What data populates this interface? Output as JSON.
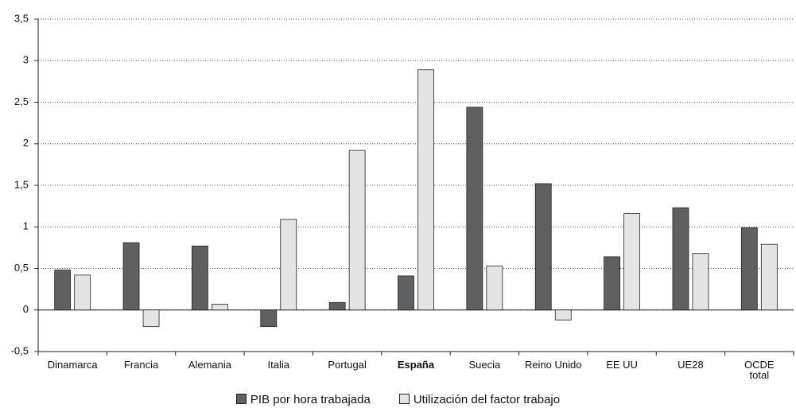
{
  "chart_data": {
    "type": "bar",
    "categories": [
      "Dinamarca",
      "Francia",
      "Alemania",
      "Italia",
      "Portugal",
      "España",
      "Suecia",
      "Reino Unido",
      "EE UU",
      "UE28",
      "OCDE\ntotal"
    ],
    "series": [
      {
        "name": "PIB por hora trabajada",
        "color": "#5f6062",
        "values": [
          0.48,
          0.81,
          0.77,
          -0.2,
          0.09,
          0.41,
          2.44,
          1.52,
          0.64,
          1.23,
          0.99
        ]
      },
      {
        "name": "Utilización del factor trabajo",
        "color": "#e4e4e4",
        "values": [
          0.42,
          -0.2,
          0.07,
          1.09,
          1.92,
          2.89,
          0.53,
          -0.12,
          1.16,
          0.68,
          0.79
        ]
      }
    ],
    "ylim": [
      -0.5,
      3.5
    ],
    "yticks": [
      {
        "value": -0.5,
        "label": "-0,5"
      },
      0,
      {
        "value": 0.5,
        "label": "0,5"
      },
      1,
      {
        "value": 1.5,
        "label": "1,5"
      },
      2,
      {
        "value": 2.5,
        "label": "2,5"
      },
      3,
      {
        "value": 3.5,
        "label": "3,5"
      }
    ],
    "grid": true
  }
}
